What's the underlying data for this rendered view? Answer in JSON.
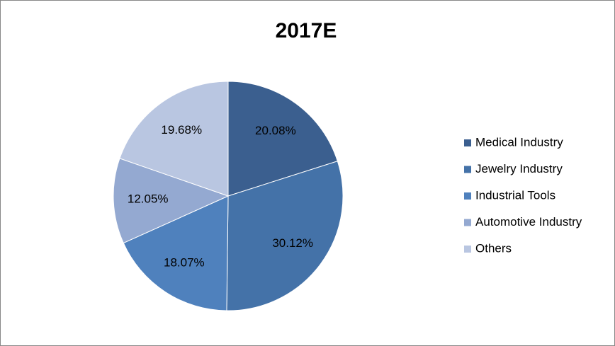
{
  "chart_data": {
    "type": "pie",
    "title": "2017E",
    "categories": [
      "Medical Industry",
      "Jewelry Industry",
      "Industrial Tools",
      "Automotive Industry",
      "Others"
    ],
    "values": [
      20.08,
      30.12,
      18.07,
      12.05,
      19.68
    ],
    "value_labels": [
      "20.08%",
      "30.12%",
      "18.07%",
      "12.05%",
      "19.68%"
    ],
    "colors": [
      "#3b5f8f",
      "#4472a8",
      "#4f81bd",
      "#94a9d1",
      "#b9c6e1"
    ],
    "legend": "right"
  }
}
